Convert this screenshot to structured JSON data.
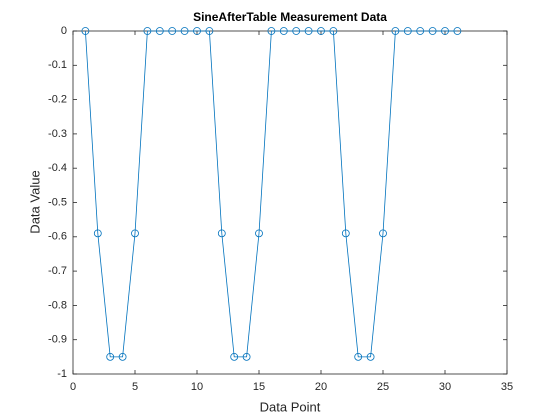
{
  "chart_data": {
    "type": "line",
    "title": "SineAfterTable Measurement Data",
    "xlabel": "Data Point",
    "ylabel": "Data Value",
    "x": [
      1,
      2,
      3,
      4,
      5,
      6,
      7,
      8,
      9,
      10,
      11,
      12,
      13,
      14,
      15,
      16,
      17,
      18,
      19,
      20,
      21,
      22,
      23,
      24,
      25,
      26,
      27,
      28,
      29,
      30,
      31
    ],
    "series": [
      {
        "color": "#0072bd",
        "values": [
          0,
          -0.59,
          -0.95,
          -0.95,
          -0.59,
          0,
          0,
          0,
          0,
          0,
          0,
          -0.59,
          -0.95,
          -0.95,
          -0.59,
          0,
          0,
          0,
          0,
          0,
          0,
          -0.59,
          -0.95,
          -0.95,
          -0.59,
          0,
          0,
          0,
          0,
          0,
          0
        ]
      }
    ],
    "xlim": [
      0,
      35
    ],
    "xticks": [
      0,
      5,
      10,
      15,
      20,
      25,
      30,
      35
    ],
    "ylim": [
      -1,
      0
    ],
    "yticks": [
      -1,
      -0.9,
      -0.8,
      -0.7,
      -0.6,
      -0.5,
      -0.4,
      -0.3,
      -0.2,
      -0.1,
      0
    ],
    "grid": false,
    "marker": "circle"
  }
}
